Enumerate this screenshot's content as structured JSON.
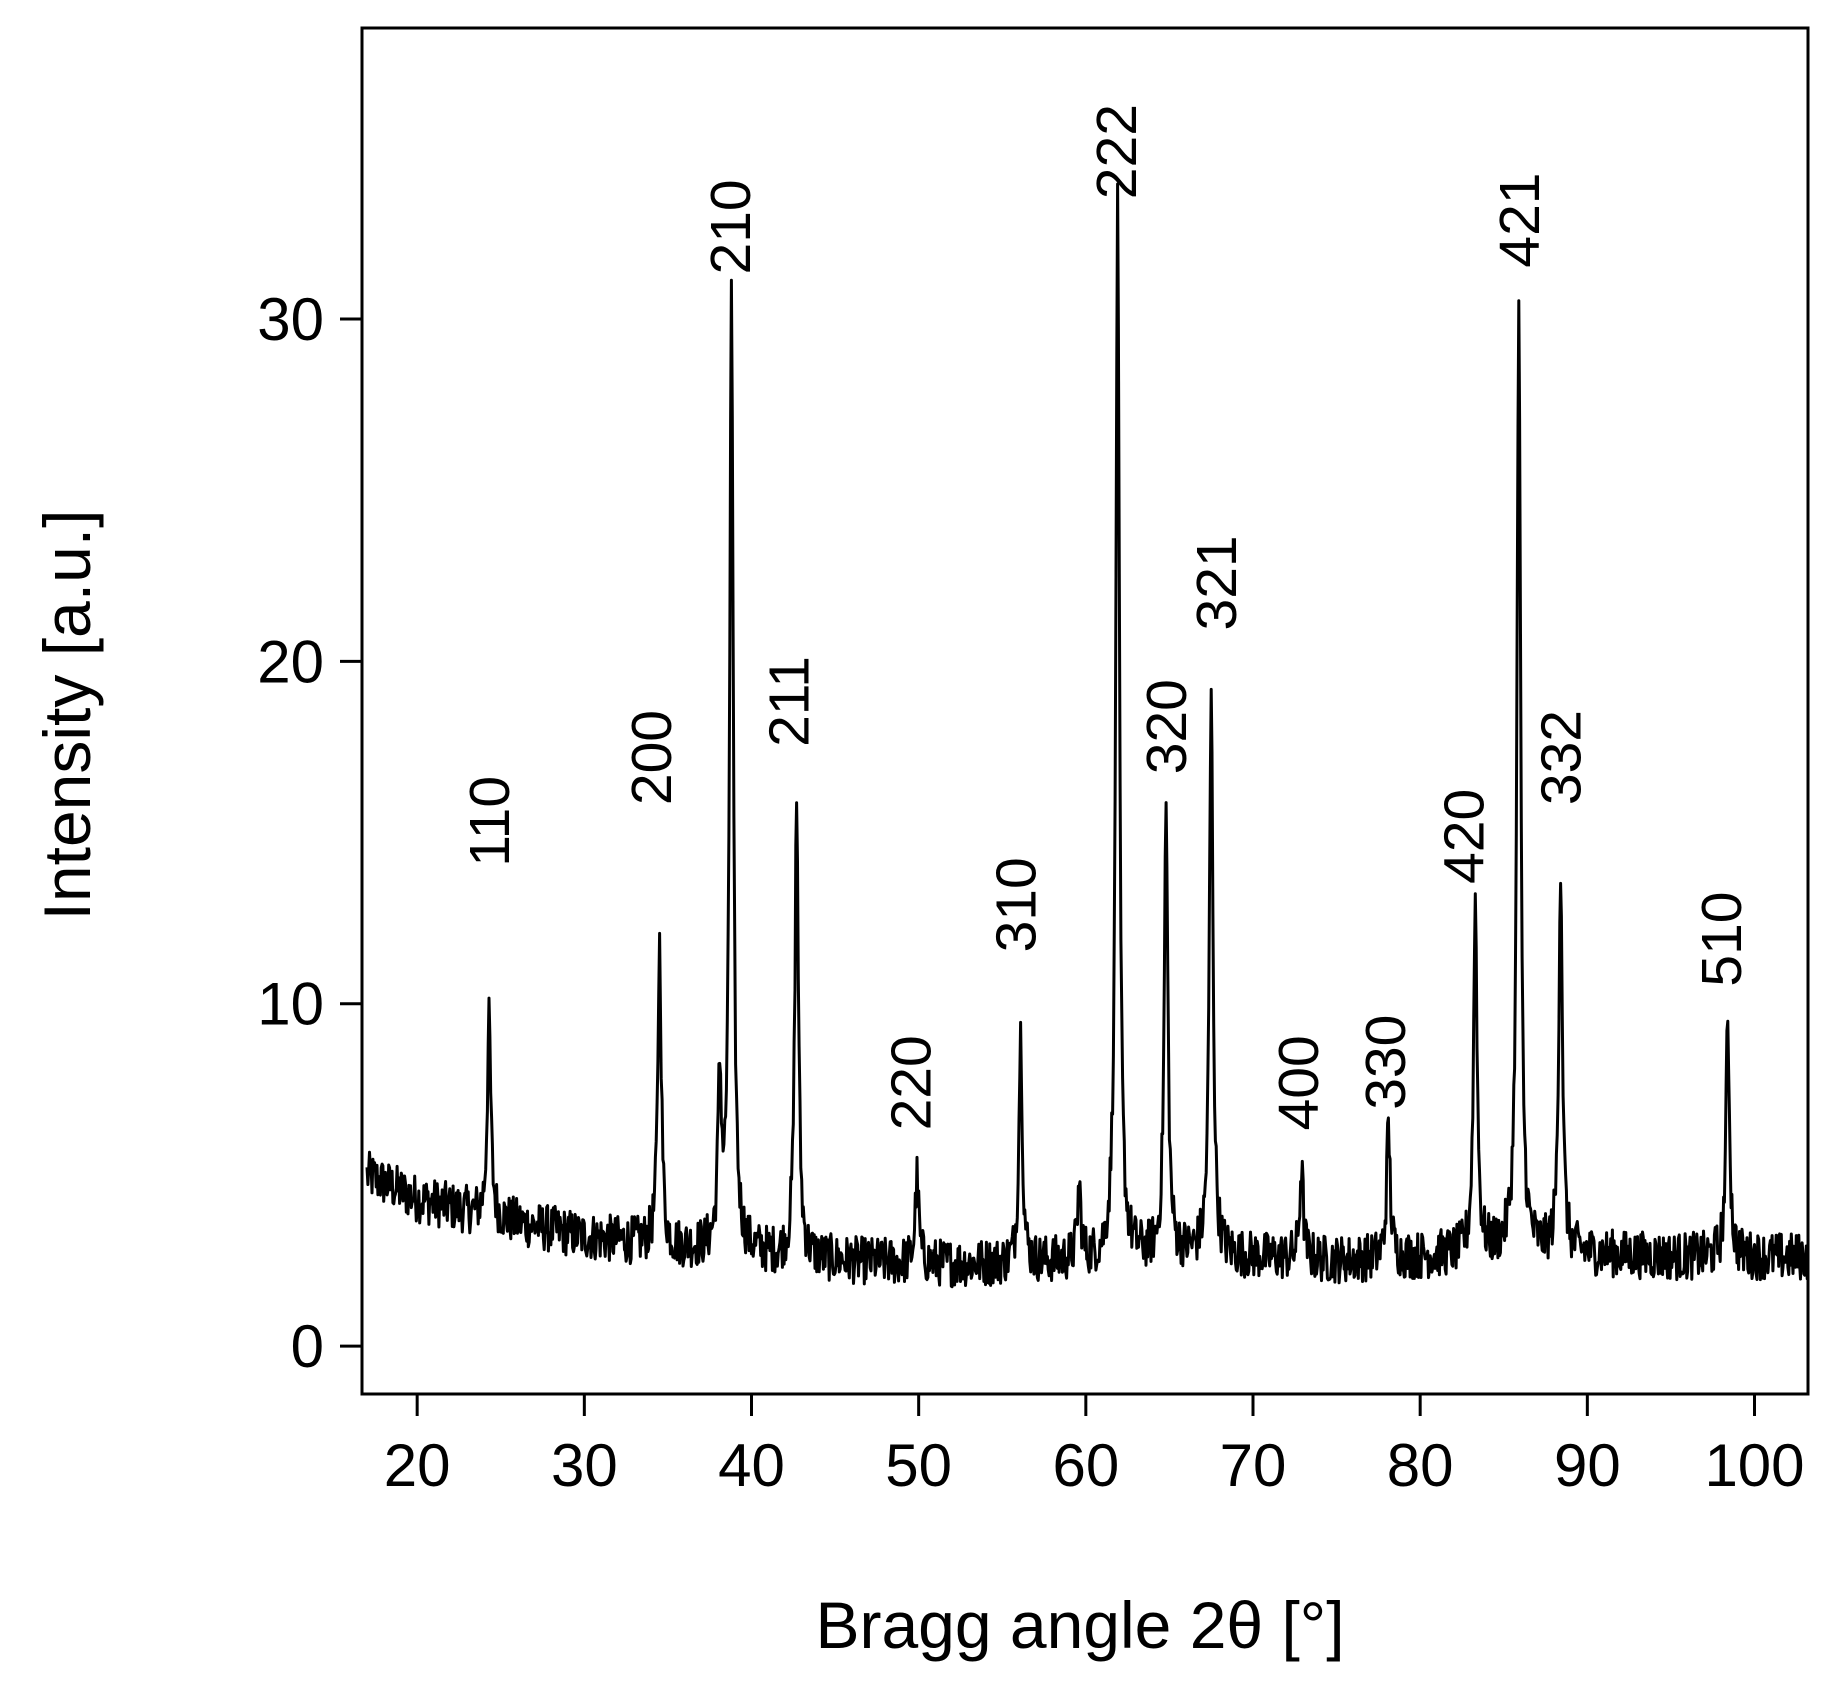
{
  "chart_data": {
    "type": "line",
    "xlabel": "Bragg angle 2θ [°]",
    "ylabel": "Intensity [a.u.]",
    "xlim": [
      16.7,
      103.2
    ],
    "ylim": [
      -1.4,
      38.5
    ],
    "x_ticks": [
      20,
      30,
      40,
      50,
      60,
      70,
      80,
      90,
      100
    ],
    "y_ticks": [
      0,
      10,
      20,
      30
    ],
    "grid": false,
    "legend": "none",
    "line_color": "#000000",
    "baseline": {
      "x": [
        17,
        20,
        25,
        30,
        35,
        40,
        45,
        50,
        55,
        60,
        65,
        70,
        75,
        80,
        85,
        90,
        95,
        100,
        103
      ],
      "y": [
        5.0,
        4.3,
        3.7,
        3.2,
        2.9,
        2.7,
        2.5,
        2.4,
        2.4,
        2.5,
        2.7,
        2.6,
        2.5,
        2.6,
        2.8,
        2.7,
        2.6,
        2.6,
        2.6
      ]
    },
    "noise_amplitude": 0.7,
    "peaks": [
      {
        "hkl": "110",
        "x": 24.3,
        "intensity": 9.5
      },
      {
        "hkl": "200",
        "x": 34.5,
        "intensity": 11.7
      },
      {
        "hkl": "",
        "x": 38.1,
        "intensity": 7.5
      },
      {
        "hkl": "210",
        "x": 38.8,
        "intensity": 30.5
      },
      {
        "hkl": "211",
        "x": 42.7,
        "intensity": 15.9
      },
      {
        "hkl": "220",
        "x": 49.9,
        "intensity": 4.9
      },
      {
        "hkl": "310",
        "x": 56.1,
        "intensity": 9.1
      },
      {
        "hkl": "",
        "x": 59.6,
        "intensity": 4.6
      },
      {
        "hkl": "222",
        "x": 61.9,
        "intensity": 33.2
      },
      {
        "hkl": "320",
        "x": 64.8,
        "intensity": 15.6
      },
      {
        "hkl": "321",
        "x": 67.5,
        "intensity": 19.0
      },
      {
        "hkl": "400",
        "x": 72.9,
        "intensity": 5.2
      },
      {
        "hkl": "330",
        "x": 78.1,
        "intensity": 6.4
      },
      {
        "hkl": "420",
        "x": 83.3,
        "intensity": 13.0
      },
      {
        "hkl": "421",
        "x": 85.9,
        "intensity": 30.5
      },
      {
        "hkl": "332",
        "x": 88.4,
        "intensity": 14.0
      },
      {
        "hkl": "510",
        "x": 98.4,
        "intensity": 9.5
      }
    ],
    "peak_labels": [
      {
        "text": "110",
        "x": 24.3,
        "y": 14.0
      },
      {
        "text": "200",
        "x": 34.0,
        "y": 15.8
      },
      {
        "text": "210",
        "x": 38.7,
        "y": 31.3
      },
      {
        "text": "211",
        "x": 42.2,
        "y": 17.5
      },
      {
        "text": "220",
        "x": 49.5,
        "y": 6.3
      },
      {
        "text": "310",
        "x": 55.8,
        "y": 11.5
      },
      {
        "text": "222",
        "x": 61.8,
        "y": 33.5
      },
      {
        "text": "320",
        "x": 64.8,
        "y": 16.7
      },
      {
        "text": "321",
        "x": 67.8,
        "y": 20.9
      },
      {
        "text": "400",
        "x": 72.7,
        "y": 6.3
      },
      {
        "text": "330",
        "x": 77.9,
        "y": 6.9
      },
      {
        "text": "420",
        "x": 82.6,
        "y": 13.5
      },
      {
        "text": "421",
        "x": 85.9,
        "y": 31.5
      },
      {
        "text": "332",
        "x": 88.4,
        "y": 15.8
      },
      {
        "text": "510",
        "x": 98.0,
        "y": 10.5
      }
    ]
  }
}
